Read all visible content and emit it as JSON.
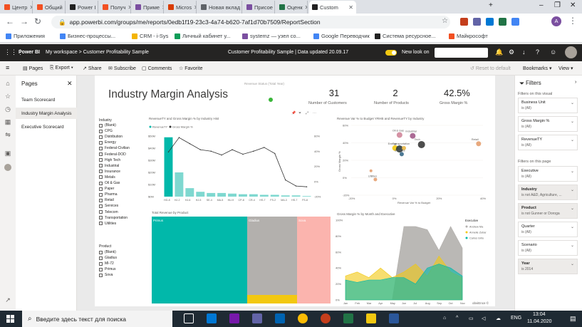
{
  "browser": {
    "tabs": [
      {
        "label": "Центр",
        "color": "#f25022"
      },
      {
        "label": "Общий",
        "color": "#f25022"
      },
      {
        "label": "Power I",
        "color": "#222222"
      },
      {
        "label": "Получ",
        "color": "#f25022"
      },
      {
        "label": "Приме",
        "color": "#7b4fa0"
      },
      {
        "label": "Micros",
        "color": "#d83b01"
      },
      {
        "label": "Новая вклад",
        "color": "#5f6368"
      },
      {
        "label": "Присое",
        "color": "#7b4fa0"
      },
      {
        "label": "Оценк",
        "color": "#217346"
      },
      {
        "label": "Custom",
        "color": "#222222"
      }
    ],
    "url": "app.powerbi.com/groups/me/reports/0edb1f19-23c3-4a74-b620-7af1d70b7509/ReportSection",
    "bookmarks": [
      {
        "label": "Приложения"
      },
      {
        "label": "Бизнес-процессы..."
      },
      {
        "label": "CRM - i-Sys"
      },
      {
        "label": "Личный кабинет у..."
      },
      {
        "label": "systemz — узел co..."
      },
      {
        "label": "Google Переводчик"
      },
      {
        "label": "Система ресурсное..."
      },
      {
        "label": "Майкрософт"
      }
    ],
    "profile_initial": "A"
  },
  "pbi": {
    "brand": "Power BI",
    "breadcrumb": "My workspace  >  Customer Profitability Sample",
    "report_title": "Customer Profitability Sample  |  Data updated 20.09.17",
    "new_look": "New look on",
    "search_placeholder": "Search"
  },
  "actionbar": {
    "pages": "Pages",
    "export": "Export",
    "share": "Share",
    "subscribe": "Subscribe",
    "comments": "Comments",
    "favorite": "Favorite",
    "reset": "Reset to default",
    "bookmarks": "Bookmarks",
    "view": "View"
  },
  "pages_pane": {
    "title": "Pages",
    "items": [
      "Team Scorecard",
      "Industry Margin Analysis",
      "Executive Scorecard"
    ]
  },
  "report": {
    "title": "Industry Margin Analysis",
    "revenue_status_title": "Revenue Status (Total Year)",
    "kpis": [
      {
        "value": "31",
        "label": "Number of Customers"
      },
      {
        "value": "2",
        "label": "Number of Products"
      },
      {
        "value": "42.5%",
        "label": "Gross Margin %"
      }
    ],
    "industry_slicer": {
      "title": "Industry",
      "items": [
        "(Blank)",
        "CPG",
        "Distribution",
        "Energy",
        "Federal-Civilian",
        "Federal-DOD",
        "High Tech",
        "Industrial",
        "Insurance",
        "Metals",
        "Oil & Gas",
        "Paper",
        "Pharma",
        "Retail",
        "Services",
        "Telecom",
        "Transportation",
        "Utilities"
      ]
    },
    "product_slicer": {
      "title": "Product",
      "items": [
        "(Blank)",
        "Gladius",
        "MI-72",
        "Primus",
        "Sova"
      ]
    },
    "treemap": {
      "title": "Total Revenue by Product",
      "labels": [
        "Primus",
        "Gladius",
        "Sova"
      ]
    },
    "footer_text": "obviEnce ©"
  },
  "chart_data": [
    {
      "type": "bar",
      "title": "RevenueTY and Gross Margin % by Industry Hist",
      "legend": [
        "RevenueTY",
        "Gross Margin %"
      ],
      "categories": [
        "HG-8",
        "HJ-2",
        "HJ-6",
        "HJ-5",
        "SE-4",
        "MA-5",
        "HU-9",
        "CP-8",
        "CR-4",
        "HS-7",
        "FS-2",
        "MA-3",
        "HS-7",
        "FS-8"
      ],
      "series": [
        {
          "name": "RevenueTY",
          "values": [
            49,
            20,
            7,
            4,
            3,
            3,
            2.5,
            2,
            2,
            1.5,
            1.5,
            1,
            1,
            0.5
          ]
        },
        {
          "name": "Gross Margin %",
          "values": [
            39,
            58,
            50,
            42,
            40,
            35,
            42,
            36,
            40,
            45,
            37,
            2,
            -6,
            -7
          ]
        }
      ],
      "ylim": [
        0,
        50
      ],
      "y_ticks": [
        "$50M",
        "$40M",
        "$30M",
        "$20M",
        "$10M",
        "$0M"
      ],
      "y2_ticks": [
        "60%",
        "40%",
        "20%",
        "0%",
        "-20%"
      ]
    },
    {
      "type": "scatter",
      "title": "Revenue Var % to Budget YRHB and RevenueTY by Industry",
      "xlabel": "Revenue Var % to Budget",
      "ylabel": "Gross Margin %",
      "x_ticks": [
        "-20%",
        "0%",
        "20%",
        "40%"
      ],
      "y_ticks": [
        "60%",
        "40%",
        "20%",
        "0%",
        "-20%"
      ],
      "points": [
        {
          "label": "Oil & Gas",
          "x": 2,
          "y": 49,
          "color": "#d0869a"
        },
        {
          "label": "Industrial",
          "x": 8,
          "y": 48,
          "color": "#a25b8a"
        },
        {
          "label": "Tech",
          "x": 12,
          "y": 38,
          "color": "#3a3a3a"
        },
        {
          "label": "Retail",
          "x": 38,
          "y": 39,
          "color": "#e6a070"
        },
        {
          "label": "Energy",
          "x": 0,
          "y": 34,
          "color": "#f2c811"
        },
        {
          "label": "Transportation",
          "x": 2,
          "y": 33,
          "color": "#2c3a3a"
        },
        {
          "label": "",
          "x": 4,
          "y": 34,
          "color": "#e8b84a"
        },
        {
          "label": "Services",
          "x": 3,
          "y": 27,
          "color": "#3a6a8a"
        },
        {
          "label": "Utilities",
          "x": -9,
          "y": -2,
          "color": "#e6a070"
        },
        {
          "label": "",
          "x": -11,
          "y": 8,
          "color": "#e6a070"
        }
      ]
    },
    {
      "type": "area",
      "title": "Gross Margin % by Month and Executive",
      "legend_title": "Executive",
      "categories": [
        "Jan",
        "Feb",
        "Mar",
        "Apr",
        "May",
        "Jun",
        "Jul",
        "Aug",
        "Sep",
        "Oct",
        "Nov"
      ],
      "y_ticks": [
        "100%",
        "80%",
        "60%",
        "40%",
        "20%",
        "0%"
      ],
      "series": [
        {
          "name": "Andrew Ma",
          "color": "#b3b0ad",
          "values": [
            0,
            0,
            0,
            0,
            0,
            92,
            92,
            88,
            62,
            92,
            65
          ]
        },
        {
          "name": "Annelie Zubar",
          "color": "#f2c811",
          "values": [
            30,
            35,
            28,
            40,
            28,
            35,
            45,
            30,
            55,
            35,
            28
          ]
        },
        {
          "name": "Carlos Grilo",
          "color": "#01b8aa",
          "values": [
            25,
            22,
            25,
            25,
            28,
            28,
            20,
            40,
            45,
            40,
            30
          ]
        }
      ]
    }
  ],
  "filters": {
    "title": "Filters",
    "on_visual": "Filters on this visual",
    "on_page": "Filters on this page",
    "visual_filters": [
      {
        "name": "Business Unit",
        "value": "is (All)"
      },
      {
        "name": "Gross Margin %",
        "value": "is (All)"
      },
      {
        "name": "RevenueTY",
        "value": "is (All)"
      }
    ],
    "page_filters": [
      {
        "name": "Executive",
        "value": "is (All)",
        "bold": false
      },
      {
        "name": "Industry",
        "value": "is not A&D, Agriculture, ...",
        "bold": true
      },
      {
        "name": "Product",
        "value": "is not Gunner or Doroga",
        "bold": true
      },
      {
        "name": "Quarter",
        "value": "is (All)",
        "bold": false
      },
      {
        "name": "Scenario",
        "value": "is (All)",
        "bold": false
      },
      {
        "name": "Year",
        "value": "is 2014",
        "bold": true
      }
    ]
  },
  "taskbar": {
    "search_placeholder": "Введите здесь текст для поиска",
    "lang": "ENG",
    "time": "13:04",
    "date": "11.04.2020"
  }
}
